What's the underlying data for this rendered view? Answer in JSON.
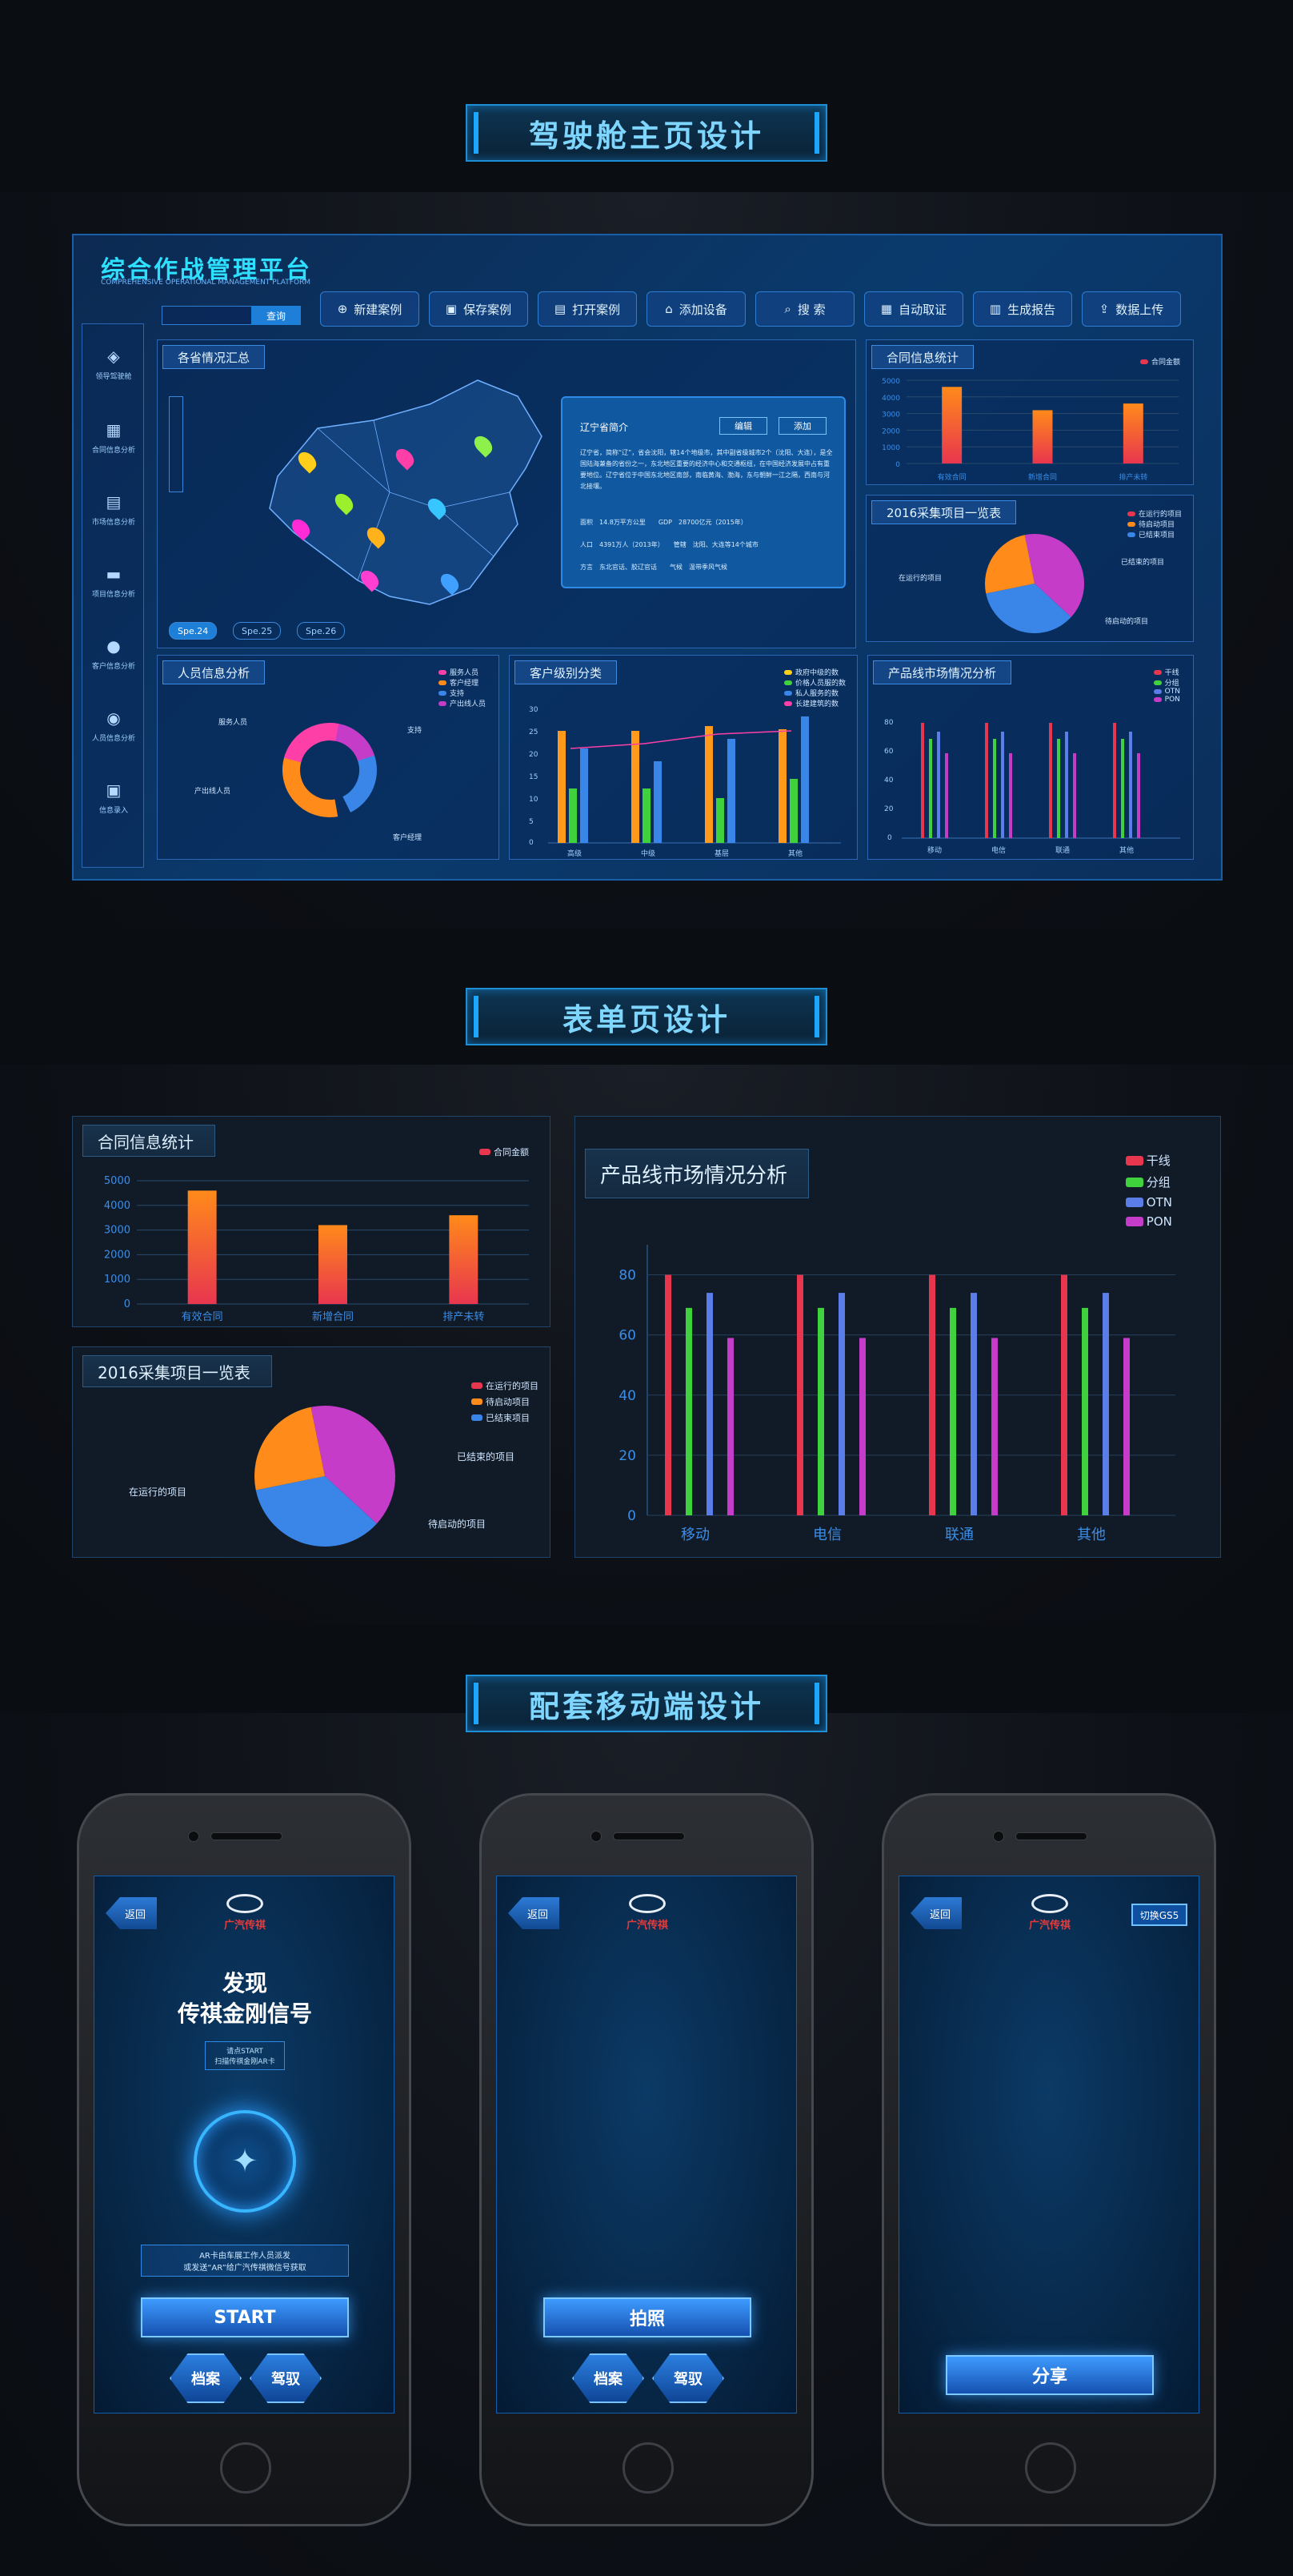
{
  "sections": {
    "cockpit": "驾驶舱主页设计",
    "form": "表单页设计",
    "mobile": "配套移动端设计"
  },
  "dashboard": {
    "title": "综合作战管理平台",
    "subtitle": "COMPREHENSIVE OPERATIONAL MANAGEMENT PLATFORM",
    "search_button": "查询",
    "toolbar": [
      "新建案例",
      "保存案例",
      "打开案例",
      "添加设备",
      "搜 索",
      "自动取证",
      "生成报告",
      "数据上传"
    ],
    "sidebar": [
      "领导驾驶舱",
      "合同信息分析",
      "市场信息分析",
      "项目信息分析",
      "客户信息分析",
      "人员信息分析",
      "信息录入"
    ],
    "map_panel": {
      "title": "各省情况汇总",
      "tabs": [
        "Spe.24",
        "Spe.25",
        "Spe.26"
      ],
      "popup": {
        "title": "辽宁省简介",
        "edit": "编辑",
        "add": "添加",
        "text": "辽宁省，简称“辽”，省会沈阳，辖14个地级市，其中副省级城市2个（沈阳、大连），是全国陆海兼备的省份之一，东北地区重要的经济中心和交通枢纽，在中国经济发展中占有重要地位。辽宁省位于中国东北地区南部，南临黄海、渤海，东与朝鲜一江之隔，西南与河北接壤。",
        "rows": [
          {
            "label": "面积",
            "value": "14.8万平方公里",
            "label2": "GDP",
            "value2": "28700亿元（2015年）"
          },
          {
            "label": "人口",
            "value": "4391万人（2013年）",
            "label2": "管辖",
            "value2": "沈阳、大连等14个城市"
          },
          {
            "label": "方言",
            "value": "东北官话、胶辽官话",
            "label2": "气候",
            "value2": "温带季风气候"
          }
        ]
      }
    },
    "contract_small": {
      "title": "合同信息统计",
      "legend": "合同金额",
      "categories": [
        "有效合同",
        "新增合同",
        "排产未转"
      ]
    },
    "project_small": {
      "title": "2016采集项目一览表",
      "legend": [
        "在运行的项目",
        "待启动项目",
        "已结束项目"
      ],
      "labels": [
        "在运行的项目",
        "已结束的项目",
        "待启动的项目"
      ]
    },
    "people": {
      "title": "人员信息分析",
      "legend": [
        "服务人员",
        "客户经理",
        "支持",
        "产出线人员"
      ],
      "labels": [
        "服务人员",
        "支持",
        "产出线人员",
        "客户经理"
      ]
    },
    "customer": {
      "title": "客户级别分类",
      "legend": [
        "政府中级的数",
        "价格人员服的数",
        "私人服务的数",
        "长建建筑的数"
      ],
      "categories": [
        "高级",
        "中级",
        "基层",
        "其他"
      ],
      "yticks": [
        "30",
        "25",
        "20",
        "15",
        "10",
        "5",
        "0"
      ]
    },
    "product_small": {
      "title": "产品线市场情况分析",
      "legend": [
        "干线",
        "分组",
        "OTN",
        "PON"
      ],
      "categories": [
        "移动",
        "电信",
        "联通",
        "其他"
      ],
      "yticks": [
        "80",
        "60",
        "40",
        "20",
        "0"
      ]
    }
  },
  "form_page": {
    "contract": {
      "title": "合同信息统计",
      "legend": "合同金额",
      "yticks": [
        "5000",
        "4000",
        "3000",
        "2000",
        "1000",
        "0"
      ]
    },
    "project": {
      "title": "2016采集项目一览表",
      "legend": [
        "在运行的项目",
        "待启动项目",
        "已结束项目"
      ],
      "labels": [
        "在运行的项目",
        "已结束的项目",
        "待启动的项目"
      ]
    },
    "product": {
      "title": "产品线市场情况分析"
    }
  },
  "chart_data": [
    {
      "type": "bar",
      "title": "合同信息统计",
      "categories": [
        "有效合同",
        "新增合同",
        "排产未转"
      ],
      "series": [
        {
          "name": "合同金额",
          "values": [
            4600,
            3200,
            3600
          ]
        }
      ],
      "ylim": [
        0,
        5000
      ],
      "legend_position": "top-right"
    },
    {
      "type": "pie",
      "title": "2016采集项目一览表",
      "labels": [
        "在运行的项目",
        "待启动项目",
        "已结束项目"
      ],
      "values": [
        40,
        25,
        35
      ],
      "legend_position": "top-right"
    },
    {
      "type": "bar",
      "title": "产品线市场情况分析",
      "categories": [
        "移动",
        "电信",
        "联通",
        "其他"
      ],
      "series": [
        {
          "name": "干线",
          "values": [
            80,
            80,
            80,
            80
          ]
        },
        {
          "name": "分组",
          "values": [
            69,
            69,
            69,
            69
          ]
        },
        {
          "name": "OTN",
          "values": [
            74,
            74,
            74,
            74
          ]
        },
        {
          "name": "PON",
          "values": [
            59,
            59,
            59,
            59
          ]
        }
      ],
      "ylim": [
        0,
        90
      ],
      "yticks": [
        0,
        20,
        40,
        60,
        80
      ],
      "legend_position": "top-right"
    }
  ],
  "colors": {
    "red": "#e8364f",
    "green": "#3fd23c",
    "blue": "#5a7de8",
    "purple": "#c43cc8",
    "orange": "#ff8c1a",
    "cyan": "#2ee0ff"
  },
  "mobile": [
    {
      "back": "返回",
      "brand": "广汽传祺",
      "heading1": "发现",
      "heading2": "传祺金刚信号",
      "hint1": "请点START",
      "hint2": "扫描传祺金刚AR卡",
      "note1": "AR卡由车展工作人员派发",
      "note2": "或发送“AR”给广汽传祺微信号获取",
      "start": "START",
      "left": "档案",
      "right": "驾驭"
    },
    {
      "back": "返回",
      "brand": "广汽传祺",
      "main": "拍照",
      "left": "档案",
      "right": "驾驭"
    },
    {
      "back": "返回",
      "brand": "广汽传祺",
      "switch": "切换GS5",
      "main": "分享"
    }
  ]
}
